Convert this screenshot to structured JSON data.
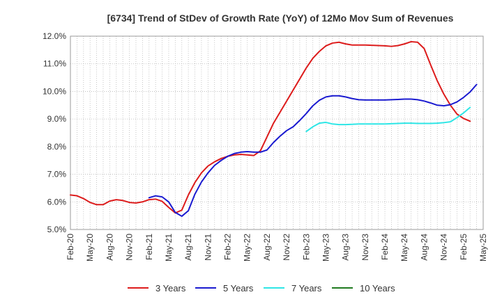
{
  "chart_data": {
    "type": "line",
    "title": "[6734]  Trend of StDev of Growth Rate (YoY) of 12Mo Mov Sum of Revenues",
    "xlabel": "",
    "ylabel": "",
    "ylim": [
      5.0,
      12.0
    ],
    "y_ticks": [
      "5.0%",
      "6.0%",
      "7.0%",
      "8.0%",
      "9.0%",
      "10.0%",
      "11.0%",
      "12.0%"
    ],
    "x_ticks": [
      "Feb-20",
      "May-20",
      "Aug-20",
      "Nov-20",
      "Feb-21",
      "May-21",
      "Aug-21",
      "Nov-21",
      "Feb-22",
      "May-22",
      "Aug-22",
      "Nov-22",
      "Feb-23",
      "May-23",
      "Aug-23",
      "Nov-23",
      "Feb-24",
      "May-24",
      "Aug-24",
      "Nov-24",
      "Feb-25",
      "May-25"
    ],
    "x_start": "Feb-20",
    "x_months": 63,
    "grid": true,
    "legend_position": "bottom",
    "series": [
      {
        "name": "3 Years",
        "color": "#dd1c1c",
        "start_month": 0,
        "values": [
          6.25,
          6.22,
          6.12,
          5.98,
          5.9,
          5.9,
          6.03,
          6.08,
          6.05,
          5.98,
          5.96,
          6.0,
          6.08,
          6.1,
          6.02,
          5.8,
          5.6,
          5.7,
          6.25,
          6.7,
          7.05,
          7.3,
          7.45,
          7.57,
          7.65,
          7.7,
          7.72,
          7.7,
          7.68,
          7.85,
          8.35,
          8.85,
          9.25,
          9.65,
          10.05,
          10.45,
          10.85,
          11.2,
          11.45,
          11.65,
          11.75,
          11.78,
          11.72,
          11.68,
          11.68,
          11.68,
          11.67,
          11.66,
          11.65,
          11.63,
          11.66,
          11.72,
          11.8,
          11.78,
          11.55,
          10.95,
          10.38,
          9.9,
          9.5,
          9.18,
          9.02,
          8.92
        ]
      },
      {
        "name": "5 Years",
        "color": "#1a1ad0",
        "start_month": 12,
        "values": [
          6.15,
          6.22,
          6.18,
          6.0,
          5.62,
          5.48,
          5.68,
          6.28,
          6.72,
          7.05,
          7.32,
          7.5,
          7.65,
          7.75,
          7.8,
          7.82,
          7.8,
          7.8,
          7.88,
          8.15,
          8.38,
          8.58,
          8.72,
          8.95,
          9.2,
          9.48,
          9.68,
          9.8,
          9.84,
          9.84,
          9.8,
          9.74,
          9.7,
          9.69,
          9.69,
          9.69,
          9.69,
          9.7,
          9.71,
          9.72,
          9.72,
          9.7,
          9.65,
          9.58,
          9.5,
          9.48,
          9.52,
          9.62,
          9.78,
          9.98,
          10.25
        ]
      },
      {
        "name": "7 Years",
        "color": "#2ee6e6",
        "start_month": 36,
        "values": [
          8.55,
          8.72,
          8.85,
          8.88,
          8.82,
          8.8,
          8.8,
          8.81,
          8.82,
          8.82,
          8.82,
          8.82,
          8.82,
          8.83,
          8.84,
          8.85,
          8.85,
          8.84,
          8.84,
          8.84,
          8.85,
          8.87,
          8.9,
          9.05,
          9.22,
          9.42
        ]
      },
      {
        "name": "10 Years",
        "color": "#1f7a1f",
        "start_month": 0,
        "values": []
      }
    ]
  }
}
